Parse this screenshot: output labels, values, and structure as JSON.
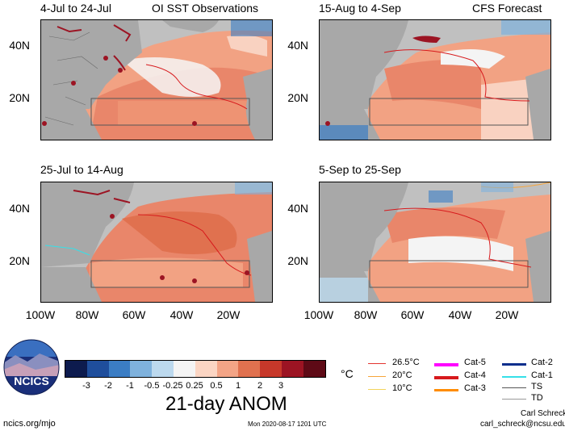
{
  "panels": [
    {
      "title": "4-Jul to 24-Jul",
      "subtitle": "OI SST Observations"
    },
    {
      "title": "15-Aug to 4-Sep",
      "subtitle": "CFS Forecast"
    },
    {
      "title": "25-Jul to 14-Aug",
      "subtitle": ""
    },
    {
      "title": "5-Sep to 25-Sep",
      "subtitle": ""
    }
  ],
  "lat_labels": [
    "40N",
    "20N"
  ],
  "lon_labels": [
    "100W",
    "80W",
    "60W",
    "40W",
    "20W"
  ],
  "colorbar": {
    "labels": [
      "-3",
      "-2",
      "-1",
      "-0.5",
      "-0.25",
      "0.25",
      "0.5",
      "1",
      "2",
      "3"
    ],
    "colors": [
      "#0d1b4e",
      "#1f4e9c",
      "#3b7dc4",
      "#7fb2dd",
      "#bcd9ee",
      "#f4f4f4",
      "#fbd5c3",
      "#f3a486",
      "#e0714f",
      "#c7382a",
      "#9c1423",
      "#5e0a16"
    ],
    "unit": "°C",
    "caption": "21-day ANOM"
  },
  "contour_legend": [
    {
      "label": "26.5°C",
      "color": "#e3342f"
    },
    {
      "label": "20°C",
      "color": "#f7a53a"
    },
    {
      "label": "10°C",
      "color": "#f2d35b"
    }
  ],
  "storm_legend_col1": [
    {
      "label": "Cat-5",
      "color": "#ff00ff"
    },
    {
      "label": "Cat-4",
      "color": "#d7191c"
    },
    {
      "label": "Cat-3",
      "color": "#ff8c00"
    }
  ],
  "storm_legend_col2": [
    {
      "label": "Cat-2",
      "color": "#0a2e8c"
    },
    {
      "label": "Cat-1",
      "color": "#35e0e8"
    },
    {
      "label": "TS",
      "color": "#555555"
    },
    {
      "label": "TD",
      "color": "#9a9a9a"
    }
  ],
  "logo_text": "NCICS",
  "footer": {
    "url": "ncics.org/mjo",
    "timestamp": "Mon 2020-08-17 1201 UTC",
    "author": "Carl Schreck",
    "email": "carl_schreck@ncsu.edu"
  }
}
